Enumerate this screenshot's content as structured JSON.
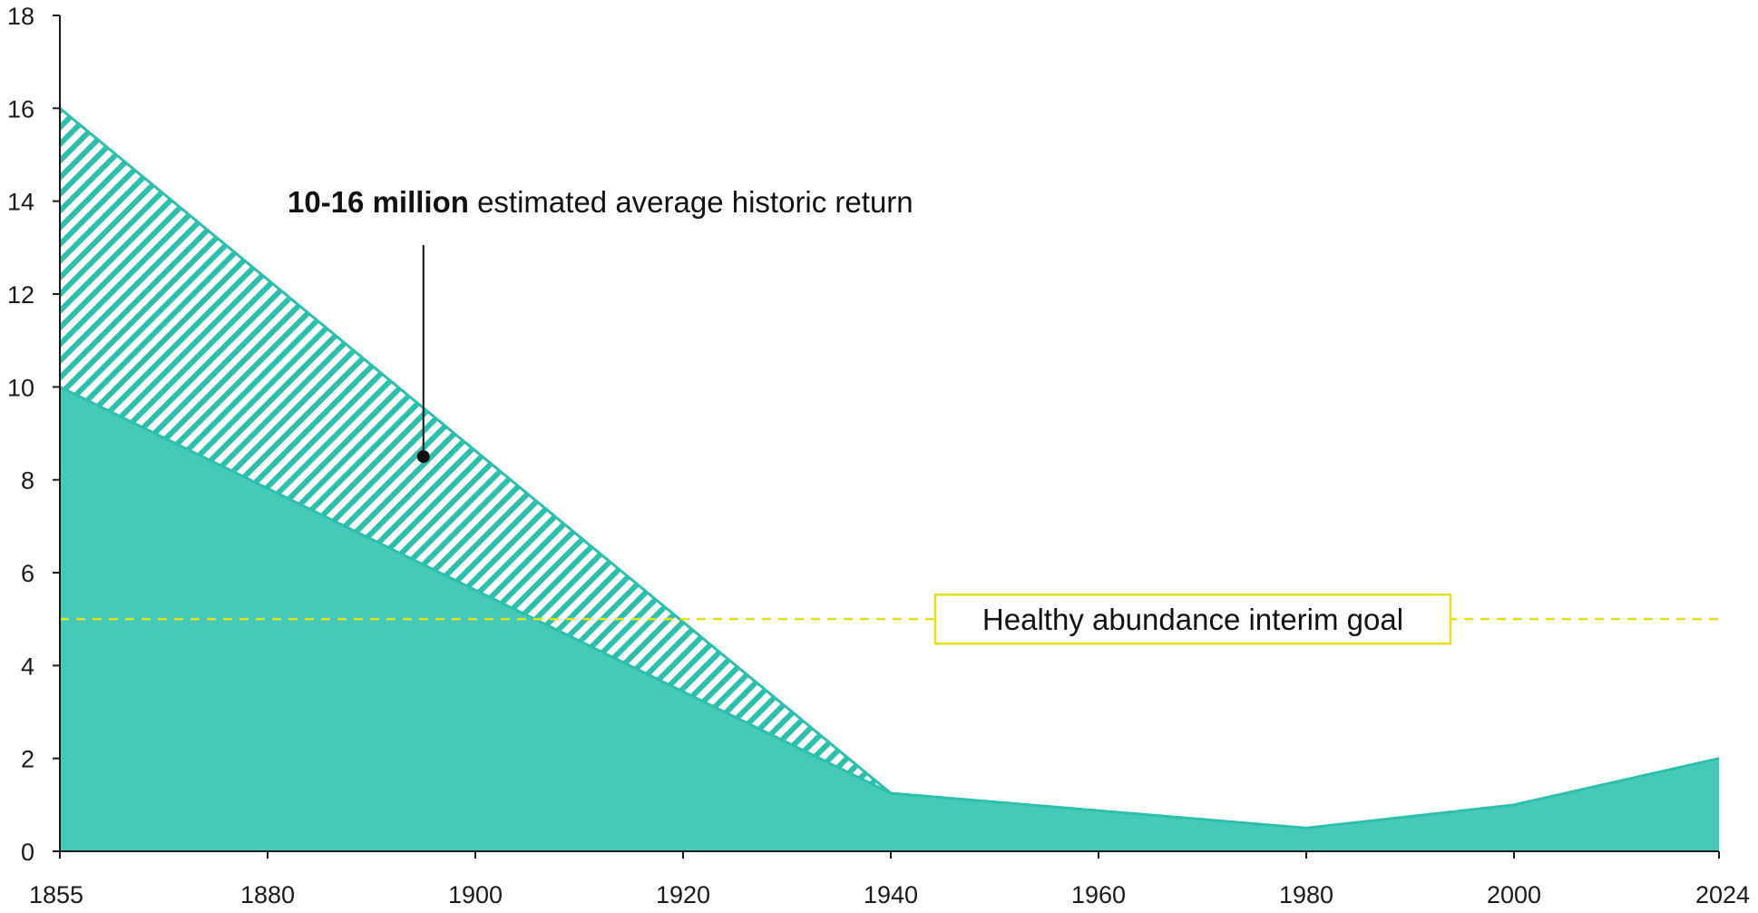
{
  "colors": {
    "area_fill": "#45c9b9",
    "area_stroke": "#2bbfae",
    "hatch": "#2bbfae",
    "goal_line": "#e6e01c",
    "axis": "#1a1a1a",
    "text": "#111111"
  },
  "chart_data": {
    "type": "area",
    "title": "",
    "xlabel": "",
    "ylabel": "",
    "xlim": [
      1855,
      2024
    ],
    "ylim": [
      0,
      18
    ],
    "x_ticks": [
      "1855",
      "1880",
      "1900",
      "1920",
      "1940",
      "1960",
      "1980",
      "2000",
      "2024"
    ],
    "y_ticks": [
      "0",
      "2",
      "4",
      "6",
      "8",
      "10",
      "12",
      "14",
      "16",
      "18"
    ],
    "grid": false,
    "series": [
      {
        "style": "solid",
        "x": [
          1855,
          1940,
          1980,
          2000,
          2024
        ],
        "y": [
          10,
          1.25,
          0.5,
          1.0,
          2.0
        ]
      },
      {
        "style": "hatched",
        "x": [
          1855,
          1940
        ],
        "y": [
          16,
          1.25
        ]
      }
    ],
    "annotations": [
      {
        "bold_text": "10-16 million",
        "text": " estimated average historic return",
        "point": {
          "x": 1895,
          "y": 8.5
        }
      }
    ],
    "reference_lines": [
      {
        "y": 5,
        "style": "dashed",
        "label": "Healthy abundance interim goal"
      }
    ]
  }
}
